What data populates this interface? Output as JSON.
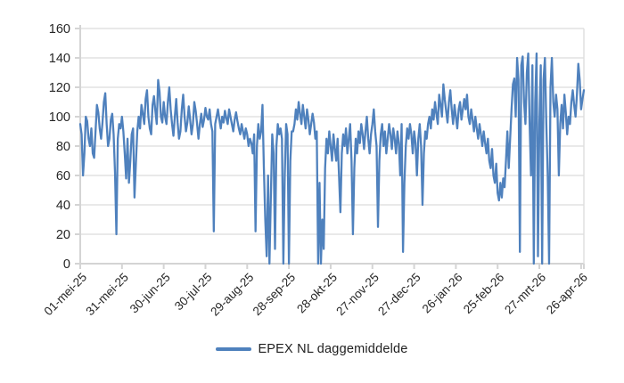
{
  "chart_data": {
    "type": "line",
    "title": "",
    "xlabel": "",
    "ylabel": "",
    "grid": true,
    "legend_position": "bottom",
    "ylim": [
      0,
      160
    ],
    "y_ticks": [
      0,
      20,
      40,
      60,
      80,
      100,
      120,
      140,
      160
    ],
    "x_tick_labels": [
      "01-mei-25",
      "31-mei-25",
      "30-jun-25",
      "30-jul-25",
      "29-aug-25",
      "28-sep-25",
      "28-okt-25",
      "27-nov-25",
      "27-dec-25",
      "26-jan-26",
      "25-feb-26",
      "27-mrt-26",
      "26-apr-26"
    ],
    "x_tick_every_n_points": 30,
    "colors": {
      "line": "#4F81BD",
      "grid": "#DCDCDC",
      "axis": "#D4D4D4",
      "label": "#262626",
      "background": "#FFFFFF"
    },
    "series": [
      {
        "name": "EPEX NL daggemiddelde",
        "values": [
          95,
          88,
          60,
          75,
          100,
          97,
          85,
          80,
          92,
          75,
          72,
          90,
          108,
          103,
          92,
          85,
          96,
          110,
          116,
          95,
          80,
          85,
          98,
          102,
          88,
          62,
          20,
          85,
          95,
          92,
          100,
          90,
          75,
          58,
          85,
          55,
          70,
          88,
          92,
          45,
          68,
          90,
          100,
          92,
          108,
          102,
          95,
          112,
          118,
          100,
          92,
          88,
          108,
          114,
          104,
          95,
          125,
          117,
          100,
          96,
          110,
          100,
          95,
          110,
          120,
          105,
          95,
          87,
          100,
          112,
          96,
          85,
          90,
          105,
          115,
          100,
          90,
          96,
          107,
          98,
          88,
          95,
          110,
          104,
          95,
          85,
          95,
          102,
          93,
          98,
          106,
          100,
          98,
          105,
          95,
          90,
          22,
          95,
          100,
          105,
          98,
          92,
          100,
          96,
          104,
          99,
          95,
          105,
          100,
          95,
          90,
          98,
          103,
          97,
          92,
          88,
          95,
          90,
          85,
          92,
          88,
          80,
          85,
          82,
          75,
          88,
          22,
          80,
          95,
          85,
          90,
          108,
          65,
          30,
          5,
          60,
          0,
          45,
          88,
          75,
          10,
          80,
          95,
          88,
          92,
          85,
          0,
          60,
          95,
          88,
          0,
          70,
          90,
          90,
          95,
          105,
          98,
          110,
          102,
          95,
          108,
          100,
          92,
          105,
          98,
          88,
          95,
          102,
          96,
          85,
          90,
          0,
          55,
          0,
          30,
          10,
          65,
          85,
          75,
          90,
          80,
          70,
          88,
          78,
          70,
          85,
          60,
          35,
          75,
          88,
          80,
          92,
          75,
          85,
          95,
          70,
          20,
          65,
          85,
          75,
          90,
          82,
          95,
          88,
          78,
          90,
          100,
          85,
          75,
          88,
          95,
          105,
          90,
          80,
          25,
          70,
          88,
          95,
          80,
          90,
          75,
          85,
          95,
          88,
          78,
          92,
          85,
          75,
          90,
          82,
          60,
          95,
          8,
          55,
          80,
          92,
          85,
          95,
          88,
          75,
          90,
          82,
          60,
          85,
          95,
          80,
          40,
          75,
          90,
          85,
          95,
          100,
          92,
          105,
          98,
          110,
          102,
          95,
          115,
          108,
          100,
          122,
          112,
          104,
          96,
          110,
          118,
          105,
          95,
          108,
          100,
          92,
          105,
          110,
          98,
          105,
          112,
          105,
          115,
          100,
          95,
          105,
          98,
          90,
          100,
          92,
          85,
          95,
          88,
          80,
          90,
          82,
          75,
          85,
          70,
          65,
          78,
          60,
          55,
          68,
          48,
          43,
          55,
          45,
          58,
          52,
          70,
          90,
          65,
          85,
          105,
          122,
          126,
          100,
          140,
          125,
          8,
          135,
          141,
          110,
          95,
          130,
          143,
          95,
          60,
          135,
          0,
          110,
          143,
          5,
          95,
          135,
          0,
          125,
          140,
          95,
          60,
          0,
          120,
          140,
          110,
          100,
          115,
          105,
          60,
          95,
          108,
          92,
          115,
          103,
          88,
          100,
          95,
          110,
          118,
          108,
          100,
          115,
          136,
          125,
          105,
          112,
          118
        ]
      }
    ]
  },
  "legend": {
    "label": "EPEX NL daggemiddelde"
  }
}
